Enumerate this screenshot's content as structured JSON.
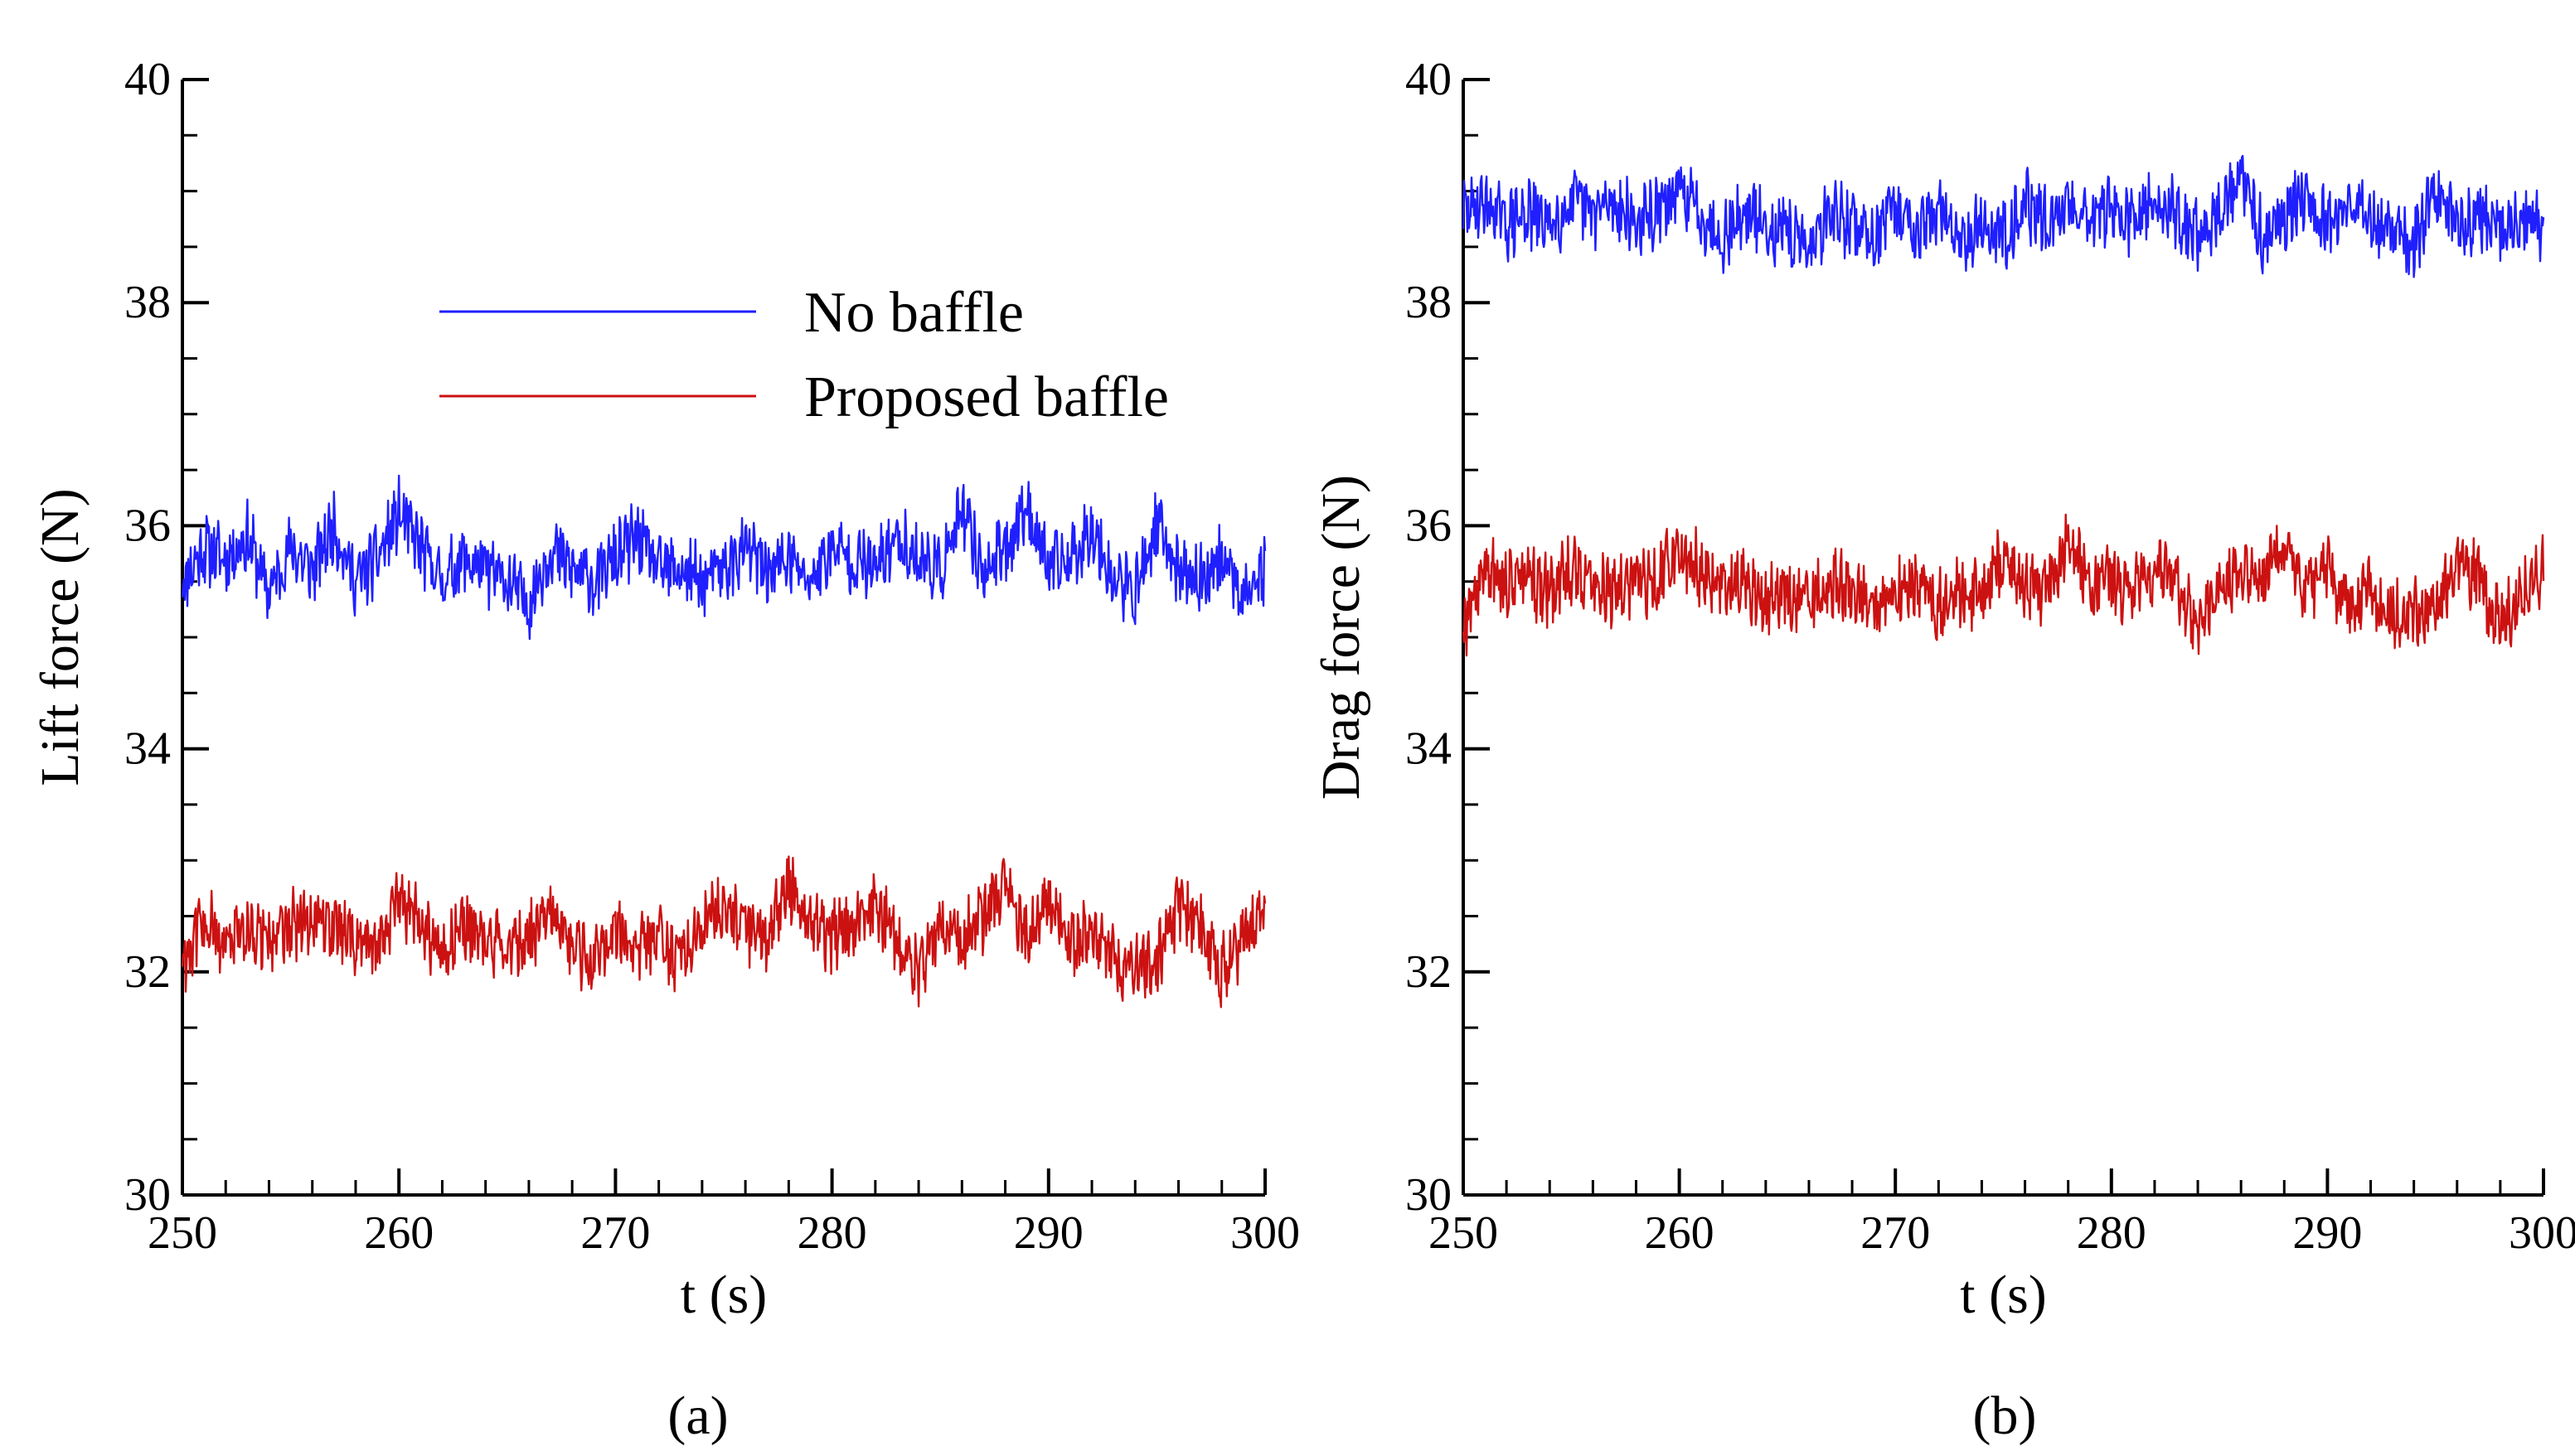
{
  "chart_data": [
    {
      "type": "line",
      "panel_caption": "(a)",
      "xlabel": "t (s)",
      "ylabel": "Lift force (N)",
      "xlim": [
        250,
        300
      ],
      "ylim": [
        30,
        40
      ],
      "x_ticks": [
        250,
        260,
        270,
        280,
        290,
        300
      ],
      "y_ticks": [
        30,
        32,
        34,
        36,
        38,
        40
      ],
      "x_tick_labels": [
        "250",
        "260",
        "270",
        "280",
        "290",
        "300"
      ],
      "y_tick_labels": [
        "30",
        "32",
        "34",
        "36",
        "38",
        "40"
      ],
      "legend": {
        "position": "top-center",
        "entries": [
          "No baffle",
          "Proposed baffle"
        ]
      },
      "series": [
        {
          "name": "No baffle",
          "color": "#1f1fff",
          "x": [
            250,
            251,
            252,
            253,
            254,
            255,
            256,
            257,
            258,
            259,
            260,
            261,
            262,
            263,
            264,
            265,
            266,
            267,
            268,
            269,
            270,
            271,
            272,
            273,
            274,
            275,
            276,
            277,
            278,
            279,
            280,
            281,
            282,
            283,
            284,
            285,
            286,
            287,
            288,
            289,
            290,
            291,
            292,
            293,
            294,
            295,
            296,
            297,
            298,
            299,
            300
          ],
          "values": [
            35.5,
            35.8,
            35.7,
            35.9,
            35.4,
            35.8,
            35.6,
            36.0,
            35.5,
            35.7,
            36.1,
            35.8,
            35.5,
            35.7,
            35.6,
            35.5,
            35.3,
            35.8,
            35.6,
            35.5,
            35.7,
            35.9,
            35.6,
            35.6,
            35.5,
            35.6,
            35.8,
            35.6,
            35.7,
            35.5,
            35.8,
            35.7,
            35.6,
            35.9,
            35.7,
            35.6,
            36.1,
            35.6,
            35.8,
            36.2,
            35.6,
            35.7,
            36.0,
            35.5,
            35.4,
            36.0,
            35.6,
            35.5,
            35.7,
            35.4,
            35.6
          ],
          "ci_range": [
            34.9,
            36.6
          ]
        },
        {
          "name": "Proposed baffle",
          "color": "#cc1111",
          "x": [
            250,
            251,
            252,
            253,
            254,
            255,
            256,
            257,
            258,
            259,
            260,
            261,
            262,
            263,
            264,
            265,
            266,
            267,
            268,
            269,
            270,
            271,
            272,
            273,
            274,
            275,
            276,
            277,
            278,
            279,
            280,
            281,
            282,
            283,
            284,
            285,
            286,
            287,
            288,
            289,
            290,
            291,
            292,
            293,
            294,
            295,
            296,
            297,
            298,
            299,
            300
          ],
          "values": [
            32.1,
            32.5,
            32.2,
            32.4,
            32.3,
            32.4,
            32.5,
            32.4,
            32.3,
            32.2,
            32.7,
            32.4,
            32.2,
            32.4,
            32.3,
            32.2,
            32.3,
            32.5,
            32.2,
            32.1,
            32.4,
            32.2,
            32.3,
            32.1,
            32.4,
            32.6,
            32.4,
            32.3,
            32.8,
            32.4,
            32.3,
            32.4,
            32.6,
            32.3,
            32.0,
            32.4,
            32.3,
            32.5,
            32.8,
            32.3,
            32.6,
            32.2,
            32.4,
            32.1,
            32.0,
            32.1,
            32.6,
            32.4,
            32.0,
            32.3,
            32.6
          ],
          "ci_range": [
            31.6,
            33.1
          ]
        }
      ]
    },
    {
      "type": "line",
      "panel_caption": "(b)",
      "xlabel": "t (s)",
      "ylabel": "Drag force (N)",
      "xlim": [
        250,
        300
      ],
      "ylim": [
        30,
        40
      ],
      "x_ticks": [
        250,
        260,
        270,
        280,
        290,
        300
      ],
      "y_ticks": [
        30,
        32,
        34,
        36,
        38,
        40
      ],
      "x_tick_labels": [
        "250",
        "260",
        "270",
        "280",
        "290",
        "300"
      ],
      "y_tick_labels": [
        "30",
        "32",
        "34",
        "36",
        "38",
        "40"
      ],
      "series": [
        {
          "name": "No baffle",
          "color": "#1f1fff",
          "x": [
            250,
            251,
            252,
            253,
            254,
            255,
            256,
            257,
            258,
            259,
            260,
            261,
            262,
            263,
            264,
            265,
            266,
            267,
            268,
            269,
            270,
            271,
            272,
            273,
            274,
            275,
            276,
            277,
            278,
            279,
            280,
            281,
            282,
            283,
            284,
            285,
            286,
            287,
            288,
            289,
            290,
            291,
            292,
            293,
            294,
            295,
            296,
            297,
            298,
            299,
            300
          ],
          "values": [
            38.8,
            38.9,
            38.7,
            38.8,
            38.7,
            38.9,
            38.8,
            38.9,
            38.7,
            38.8,
            39.0,
            38.8,
            38.6,
            38.8,
            38.7,
            38.6,
            38.5,
            38.8,
            38.7,
            38.6,
            38.8,
            38.7,
            38.8,
            38.6,
            38.7,
            38.6,
            38.9,
            38.7,
            38.9,
            38.8,
            38.8,
            38.7,
            38.9,
            38.8,
            38.6,
            38.8,
            39.1,
            38.6,
            38.8,
            39.0,
            38.7,
            38.9,
            38.8,
            38.6,
            38.5,
            39.0,
            38.7,
            38.8,
            38.6,
            38.7,
            38.7
          ],
          "ci_range": [
            38.1,
            39.6
          ]
        },
        {
          "name": "Proposed baffle",
          "color": "#cc1111",
          "x": [
            250,
            251,
            252,
            253,
            254,
            255,
            256,
            257,
            258,
            259,
            260,
            261,
            262,
            263,
            264,
            265,
            266,
            267,
            268,
            269,
            270,
            271,
            272,
            273,
            274,
            275,
            276,
            277,
            278,
            279,
            280,
            281,
            282,
            283,
            284,
            285,
            286,
            287,
            288,
            289,
            290,
            291,
            292,
            293,
            294,
            295,
            296,
            297,
            298,
            299,
            300
          ],
          "values": [
            35.1,
            35.6,
            35.5,
            35.5,
            35.4,
            35.6,
            35.5,
            35.4,
            35.5,
            35.5,
            35.8,
            35.6,
            35.4,
            35.5,
            35.3,
            35.4,
            35.3,
            35.5,
            35.4,
            35.3,
            35.4,
            35.5,
            35.3,
            35.4,
            35.4,
            35.7,
            35.5,
            35.4,
            35.9,
            35.4,
            35.5,
            35.4,
            35.6,
            35.5,
            35.1,
            35.5,
            35.6,
            35.5,
            35.8,
            35.4,
            35.6,
            35.3,
            35.4,
            35.2,
            35.2,
            35.3,
            35.7,
            35.5,
            35.1,
            35.4,
            35.6
          ],
          "ci_range": [
            34.8,
            36.1
          ]
        }
      ]
    }
  ]
}
